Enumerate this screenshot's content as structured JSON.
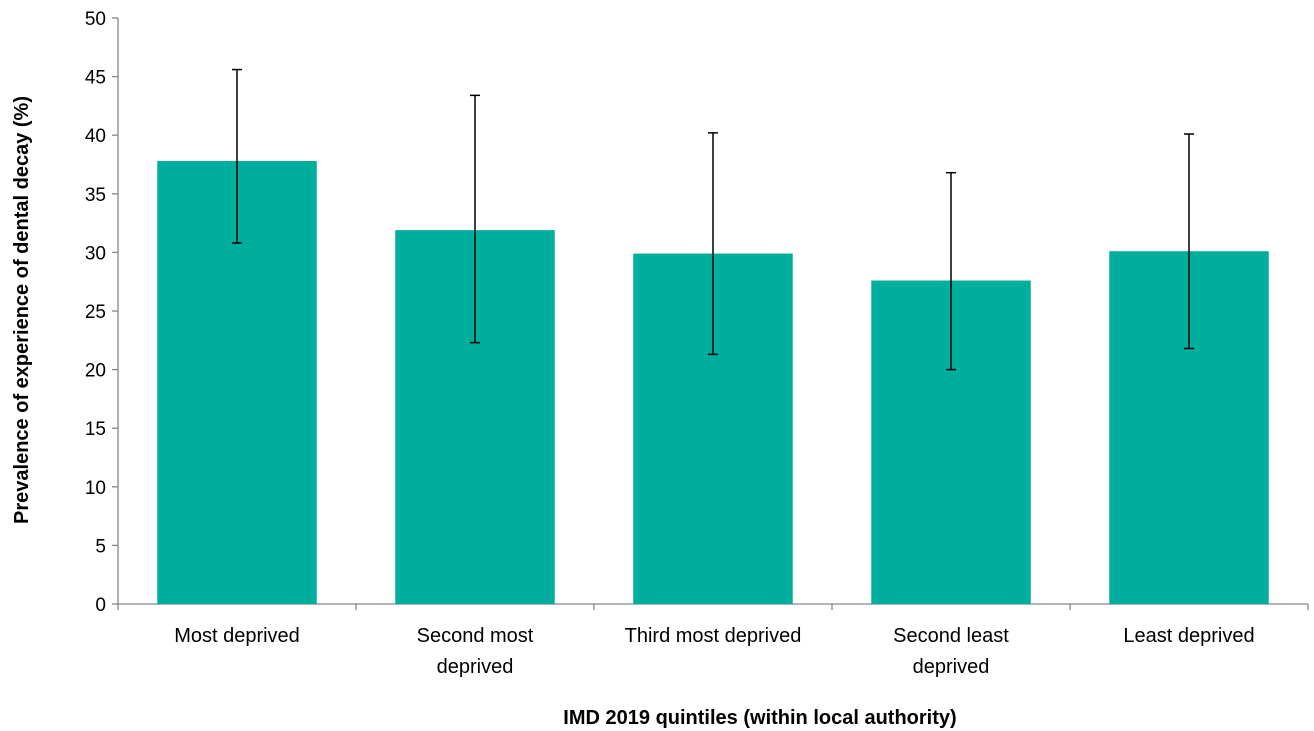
{
  "chart_data": {
    "type": "bar",
    "title": "",
    "xlabel": "IMD 2019 quintiles (within local authority)",
    "ylabel": "Prevalence of experience of dental decay (%)",
    "ylim": [
      0,
      50
    ],
    "yticks": [
      0,
      5,
      10,
      15,
      20,
      25,
      30,
      35,
      40,
      45,
      50
    ],
    "categories": [
      [
        "Most deprived"
      ],
      [
        "Second most",
        "deprived"
      ],
      [
        "Third most deprived"
      ],
      [
        "Second least",
        "deprived"
      ],
      [
        "Least deprived"
      ]
    ],
    "values": [
      37.8,
      31.9,
      29.9,
      27.6,
      30.1
    ],
    "error_low": [
      30.8,
      22.3,
      21.3,
      20.0,
      21.8
    ],
    "error_high": [
      45.6,
      43.4,
      40.2,
      36.8,
      40.1
    ],
    "grid": false,
    "legend": "none",
    "colors": {
      "bar": "#00AE9E",
      "axis": "#868686",
      "error_bar": "#000000"
    }
  }
}
